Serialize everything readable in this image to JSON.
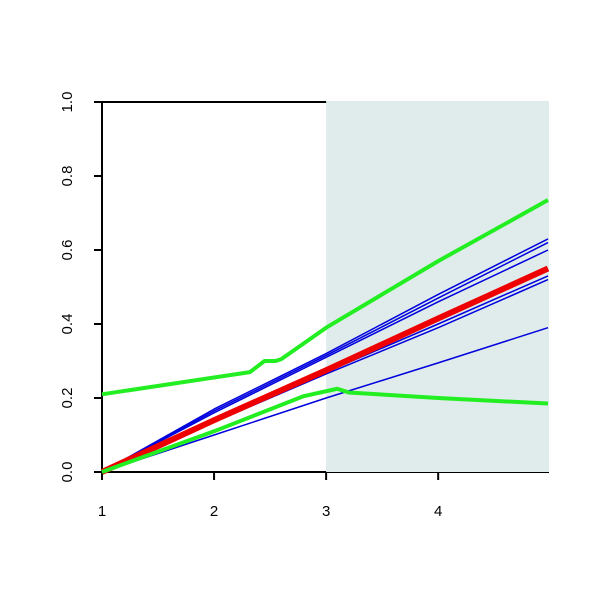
{
  "chart_data": {
    "type": "line",
    "xlim": [
      1,
      4.98
    ],
    "ylim": [
      0,
      1
    ],
    "xticks": [
      1,
      2,
      3,
      4
    ],
    "yticks": [
      {
        "value": 0,
        "label": "0.0"
      },
      0.2,
      0.4,
      0.6,
      0.8,
      {
        "value": 1,
        "label": "1.0"
      }
    ],
    "shade_from": 3,
    "shade_color": "#e0ecec",
    "series": [
      {
        "color": "#0000dd",
        "width": 1.5,
        "x": [
          1,
          2,
          3,
          4,
          4.98
        ],
        "values": [
          0,
          0.17,
          0.32,
          0.48,
          0.63
        ]
      },
      {
        "color": "#0000dd",
        "width": 1.5,
        "x": [
          1,
          2,
          3,
          4,
          4.98
        ],
        "values": [
          0,
          0.165,
          0.315,
          0.47,
          0.62
        ]
      },
      {
        "color": "#0000dd",
        "width": 1.5,
        "x": [
          1,
          2,
          3,
          4,
          4.98
        ],
        "values": [
          0,
          0.16,
          0.31,
          0.46,
          0.6
        ]
      },
      {
        "color": "#0000dd",
        "width": 1.5,
        "x": [
          1,
          2,
          3,
          4,
          4.98
        ],
        "values": [
          0,
          0.14,
          0.27,
          0.4,
          0.53
        ]
      },
      {
        "color": "#0000dd",
        "width": 1.5,
        "x": [
          1,
          2,
          3,
          4,
          4.98
        ],
        "values": [
          0,
          0.135,
          0.265,
          0.39,
          0.52
        ]
      },
      {
        "color": "#0000dd",
        "width": 1.5,
        "x": [
          1,
          2,
          3,
          4,
          4.98
        ],
        "values": [
          0,
          0.1,
          0.2,
          0.295,
          0.39
        ]
      },
      {
        "color": "#ee0000",
        "width": 6,
        "x": [
          1,
          2,
          3,
          4,
          4.98
        ],
        "values": [
          0,
          0.14,
          0.275,
          0.415,
          0.55
        ]
      },
      {
        "color": "#22ee22",
        "width": 4,
        "x": [
          1,
          2.32,
          2.45,
          2.55,
          2.6,
          3,
          4,
          4.98
        ],
        "values": [
          0.21,
          0.27,
          0.3,
          0.3,
          0.305,
          0.39,
          0.57,
          0.735
        ]
      },
      {
        "color": "#22ee22",
        "width": 4,
        "x": [
          1,
          2,
          2.8,
          3.1,
          3.2,
          4,
          4.98
        ],
        "values": [
          0,
          0.11,
          0.205,
          0.225,
          0.215,
          0.2,
          0.185
        ]
      }
    ]
  }
}
